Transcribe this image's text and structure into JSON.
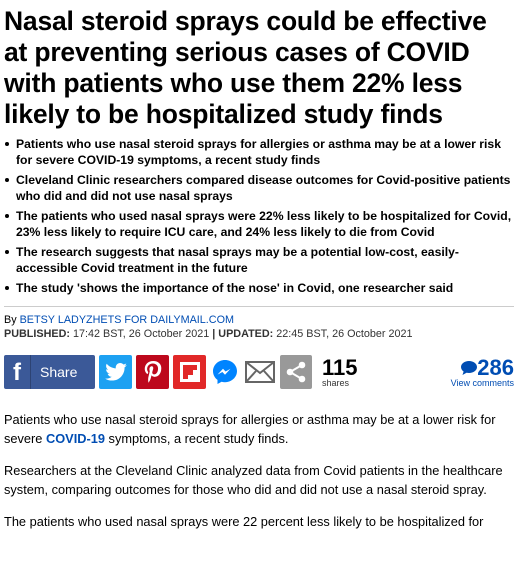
{
  "headline": "Nasal steroid sprays could be effective at preventing serious cases of COVID with patients who use them 22% less likely to be hospitalized study finds",
  "bullets": [
    "Patients who use nasal steroid sprays for allergies or asthma may be at a lower risk for severe COVID-19 symptoms, a recent study finds",
    "Cleveland Clinic researchers compared disease outcomes for Covid-positive patients who did and did not use nasal sprays",
    "The patients who used nasal sprays were 22% less likely to be hospitalized for Covid, 23% less likely to require ICU care, and 24% less likely to die from Covid",
    "The research suggests that nasal sprays may be a potential low-cost, easily-accessible Covid treatment in the future",
    "The study 'shows the importance of the nose' in Covid, one researcher said"
  ],
  "byline": {
    "by": "By",
    "author": "BETSY LADYZHETS FOR DAILYMAIL.COM",
    "published_label": "PUBLISHED:",
    "published": "17:42 BST, 26 October 2021",
    "separator": "|",
    "updated_label": "UPDATED:",
    "updated": "22:45 BST, 26 October 2021"
  },
  "share": {
    "facebook_label": "Share",
    "share_count": "115",
    "share_count_label": "shares",
    "comment_count": "286",
    "comment_label": "View comments",
    "colors": {
      "facebook": "#3b5998",
      "twitter": "#1da1f2",
      "pinterest": "#bd081c",
      "flipboard": "#e12828",
      "link": "#004db3"
    },
    "icons": [
      "facebook-icon",
      "twitter-icon",
      "pinterest-icon",
      "flipboard-icon",
      "messenger-icon",
      "email-icon",
      "share-icon",
      "comment-bubble-icon"
    ]
  },
  "article": {
    "p1_before": "Patients who use nasal steroid sprays for allergies or asthma may be at a lower risk for severe ",
    "p1_link": "COVID-19",
    "p1_after": " symptoms, a recent study finds.",
    "p2": "Researchers at the Cleveland Clinic analyzed data from Covid patients in the healthcare system, comparing outcomes for those who did and did not use a nasal steroid spray.",
    "p3": "The patients who used nasal sprays were 22 percent less likely to be hospitalized for"
  }
}
